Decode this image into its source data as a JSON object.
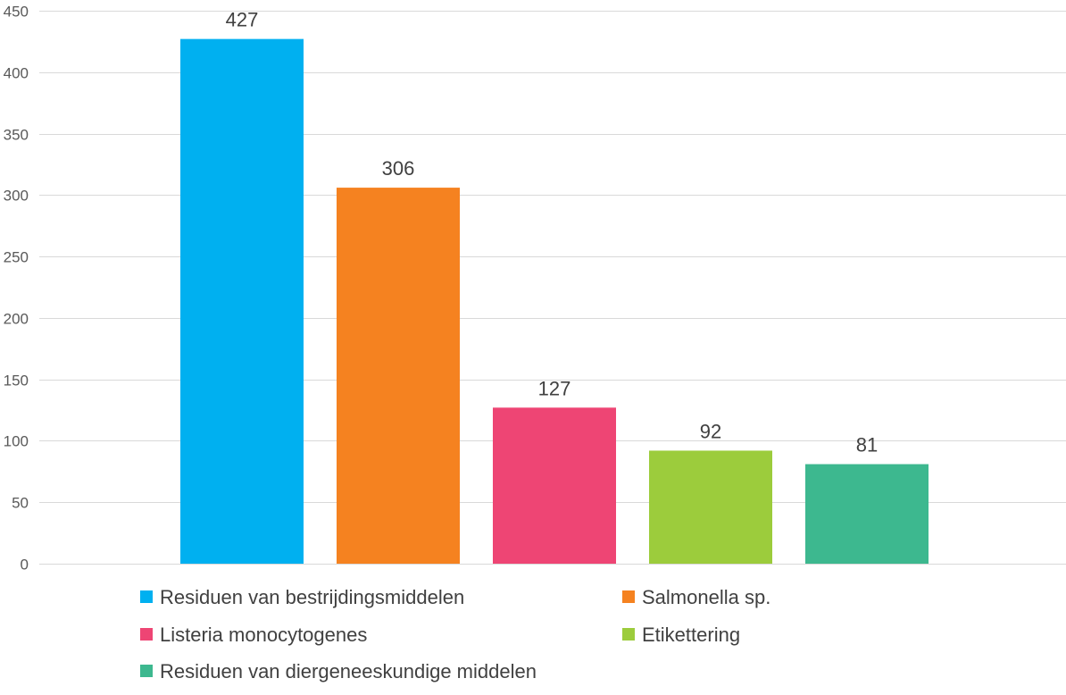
{
  "chart_data": {
    "type": "bar",
    "title": "",
    "xlabel": "",
    "ylabel": "",
    "ylim": [
      0,
      450
    ],
    "yticks": [
      0,
      50,
      100,
      150,
      200,
      250,
      300,
      350,
      400,
      450
    ],
    "grid": true,
    "legend_position": "bottom",
    "categories": [
      "Residuen van bestrijdingsmiddelen",
      "Salmonella sp.",
      "Listeria monocytogenes",
      "Etikettering",
      "Residuen van diergeneeskundige middelen"
    ],
    "values": [
      427,
      306,
      127,
      92,
      81
    ],
    "colors": [
      "#00b0f0",
      "#f58220",
      "#ee4574",
      "#9ccc3c",
      "#3db88f"
    ]
  }
}
